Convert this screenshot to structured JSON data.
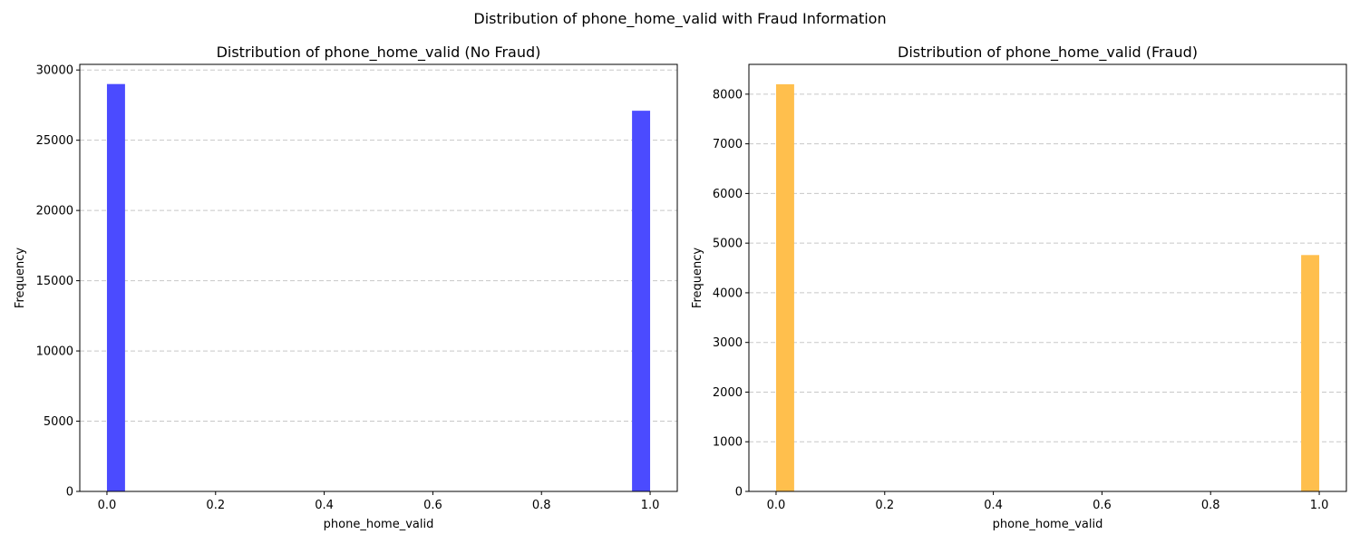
{
  "figure": {
    "suptitle": "Distribution of phone_home_valid with Fraud Information"
  },
  "chart_data": [
    {
      "type": "bar",
      "title": "Distribution of phone_home_valid (No Fraud)",
      "xlabel": "phone_home_valid",
      "ylabel": "Frequency",
      "color": "#4b4bff",
      "bin_width": 0.0333,
      "bars": [
        {
          "x": 0.0,
          "value": 29000
        },
        {
          "x": 0.9667,
          "value": 27100
        }
      ],
      "xlim": [
        -0.05,
        1.05
      ],
      "ylim": [
        0,
        30400
      ],
      "xticks": [
        0.0,
        0.2,
        0.4,
        0.6,
        0.8,
        1.0
      ],
      "xtick_labels": [
        "0.0",
        "0.2",
        "0.4",
        "0.6",
        "0.8",
        "1.0"
      ],
      "yticks": [
        0,
        5000,
        10000,
        15000,
        20000,
        25000,
        30000
      ],
      "ytick_labels": [
        "0",
        "5000",
        "10000",
        "15000",
        "20000",
        "25000",
        "30000"
      ],
      "grid": "y-dashed"
    },
    {
      "type": "bar",
      "title": "Distribution of phone_home_valid (Fraud)",
      "xlabel": "phone_home_valid",
      "ylabel": "Frequency",
      "color": "#ffbf4d",
      "bin_width": 0.0333,
      "bars": [
        {
          "x": 0.0,
          "value": 8200
        },
        {
          "x": 0.9667,
          "value": 4760
        }
      ],
      "xlim": [
        -0.05,
        1.05
      ],
      "ylim": [
        0,
        8600
      ],
      "xticks": [
        0.0,
        0.2,
        0.4,
        0.6,
        0.8,
        1.0
      ],
      "xtick_labels": [
        "0.0",
        "0.2",
        "0.4",
        "0.6",
        "0.8",
        "1.0"
      ],
      "yticks": [
        0,
        1000,
        2000,
        3000,
        4000,
        5000,
        6000,
        7000,
        8000
      ],
      "ytick_labels": [
        "0",
        "1000",
        "2000",
        "3000",
        "4000",
        "5000",
        "6000",
        "7000",
        "8000"
      ],
      "grid": "y-dashed"
    }
  ]
}
